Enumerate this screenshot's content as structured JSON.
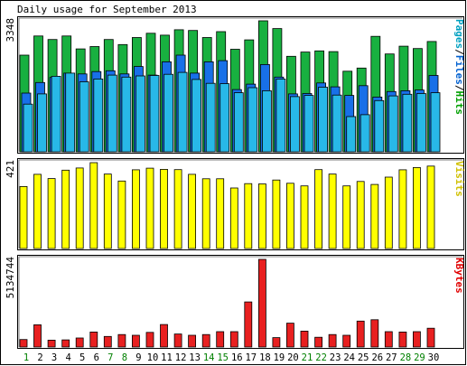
{
  "title": "Daily usage for September 2013",
  "chart_data": [
    {
      "type": "bar",
      "panel": "pages-files-hits",
      "ylabel_parts": [
        {
          "text": "Pages",
          "color": "#00a0c0"
        },
        {
          "text": "/",
          "color": "#000000"
        },
        {
          "text": "Files",
          "color": "#0060d0"
        },
        {
          "text": "/",
          "color": "#000000"
        },
        {
          "text": "Hits",
          "color": "#00a000"
        }
      ],
      "ymax_label": "3348",
      "ylim": [
        0,
        3348
      ],
      "categories": [
        "1",
        "2",
        "3",
        "4",
        "5",
        "6",
        "7",
        "8",
        "9",
        "10",
        "11",
        "12",
        "13",
        "14",
        "15",
        "16",
        "17",
        "18",
        "19",
        "20",
        "21",
        "22",
        "23",
        "24",
        "25",
        "26",
        "27",
        "28",
        "29",
        "30"
      ],
      "series": [
        {
          "name": "Hits",
          "color": "#18b040",
          "values": [
            2470,
            2960,
            2870,
            2960,
            2630,
            2690,
            2870,
            2740,
            2920,
            3030,
            2980,
            3120,
            3100,
            2920,
            3070,
            2620,
            2860,
            3348,
            3150,
            2440,
            2550,
            2580,
            2560,
            2060,
            2140,
            2950,
            2500,
            2700,
            2640,
            2820
          ]
        },
        {
          "name": "Files",
          "color": "#1870e8",
          "values": [
            1500,
            1770,
            1900,
            2010,
            1990,
            2050,
            2070,
            1990,
            2180,
            1960,
            2300,
            2470,
            2010,
            2300,
            2330,
            1590,
            1730,
            2230,
            1910,
            1480,
            1490,
            1760,
            1660,
            1440,
            1690,
            1400,
            1540,
            1560,
            1580,
            1950
          ]
        },
        {
          "name": "Pages",
          "color": "#28b8e8",
          "values": [
            1220,
            1480,
            1930,
            2010,
            1790,
            1860,
            1960,
            1910,
            1940,
            1950,
            1980,
            2030,
            1850,
            1750,
            1740,
            1510,
            1640,
            1560,
            1860,
            1410,
            1440,
            1650,
            1450,
            900,
            950,
            1310,
            1430,
            1470,
            1490,
            1510
          ]
        }
      ]
    },
    {
      "type": "bar",
      "panel": "visits",
      "ylabel_parts": [
        {
          "text": "Visits",
          "color": "#d0c000"
        }
      ],
      "ymax_label": "421",
      "ylim": [
        0,
        421
      ],
      "categories": [
        "1",
        "2",
        "3",
        "4",
        "5",
        "6",
        "7",
        "8",
        "9",
        "10",
        "11",
        "12",
        "13",
        "14",
        "15",
        "16",
        "17",
        "18",
        "19",
        "20",
        "21",
        "22",
        "23",
        "24",
        "25",
        "26",
        "27",
        "28",
        "29",
        "30"
      ],
      "series": [
        {
          "name": "Visits",
          "color": "#ffff00",
          "values": [
            304,
            364,
            343,
            384,
            395,
            421,
            365,
            331,
            386,
            394,
            388,
            387,
            364,
            342,
            342,
            297,
            318,
            317,
            336,
            320,
            307,
            387,
            365,
            307,
            329,
            314,
            350,
            386,
            397,
            404
          ]
        }
      ]
    },
    {
      "type": "bar",
      "panel": "kbytes",
      "ylabel_parts": [
        {
          "text": "KBytes",
          "color": "#e00000"
        }
      ],
      "ymax_label": "5134744",
      "ylim": [
        0,
        5134744
      ],
      "categories": [
        "1",
        "2",
        "3",
        "4",
        "5",
        "6",
        "7",
        "8",
        "9",
        "10",
        "11",
        "12",
        "13",
        "14",
        "15",
        "16",
        "17",
        "18",
        "19",
        "20",
        "21",
        "22",
        "23",
        "24",
        "25",
        "26",
        "27",
        "28",
        "29",
        "30"
      ],
      "series": [
        {
          "name": "KBytes",
          "color": "#e82020",
          "values": [
            440000,
            1300000,
            400000,
            420000,
            530000,
            880000,
            620000,
            730000,
            690000,
            860000,
            1320000,
            760000,
            690000,
            730000,
            900000,
            900000,
            2640000,
            5134744,
            550000,
            1400000,
            930000,
            570000,
            730000,
            690000,
            1520000,
            1600000,
            900000,
            880000,
            900000,
            1100000
          ]
        }
      ]
    }
  ],
  "day_label_colors": [
    "#008000",
    "#000000",
    "#000000",
    "#000000",
    "#000000",
    "#000000",
    "#008000",
    "#008000",
    "#000000",
    "#000000",
    "#000000",
    "#000000",
    "#000000",
    "#008000",
    "#008000",
    "#000000",
    "#000000",
    "#000000",
    "#000000",
    "#000000",
    "#008000",
    "#008000",
    "#000000",
    "#000000",
    "#000000",
    "#000000",
    "#000000",
    "#008000",
    "#008000",
    "#000000"
  ]
}
